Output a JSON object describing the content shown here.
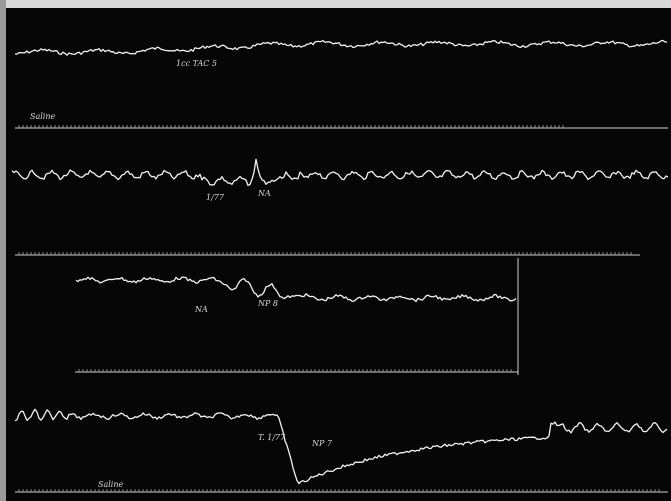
{
  "annotations": {
    "panel_1": [
      "1cc TAC 5",
      "Saline"
    ],
    "panel_2": [
      "1/77",
      "NA"
    ],
    "panel_3": [
      "NA",
      "NP 8"
    ],
    "panel_4": [
      "T. 1/77",
      "NP 7",
      "Saline"
    ]
  }
}
